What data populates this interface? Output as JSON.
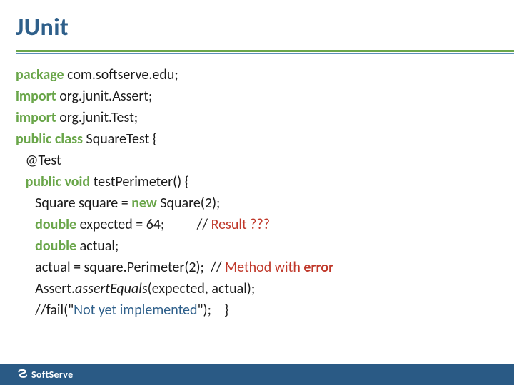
{
  "colors": {
    "title": "#2e5f8a",
    "divider_thick": "#6aa64a",
    "divider_thin": "#5b8fb9",
    "keyword": "#6aa64a",
    "text": "#1a1a1a",
    "string": "#2e5f8a",
    "error": "#c0392b",
    "footer_bg": "#2a5a85",
    "logo_fg": "#ffffff"
  },
  "title": "JUnit",
  "code": {
    "lines": [
      {
        "segments": [
          {
            "t": "package ",
            "k": true
          },
          {
            "t": "com.softserve.edu;"
          }
        ]
      },
      {
        "segments": [
          {
            "t": "import ",
            "k": true
          },
          {
            "t": "org.junit.Assert;"
          }
        ]
      },
      {
        "segments": [
          {
            "t": "import ",
            "k": true
          },
          {
            "t": "org.junit.Test;"
          }
        ]
      },
      {
        "segments": [
          {
            "t": "public class ",
            "k": true
          },
          {
            "t": "SquareTest {"
          }
        ]
      },
      {
        "indent": 1,
        "segments": [
          {
            "t": "@Test"
          }
        ]
      },
      {
        "indent": 1,
        "segments": [
          {
            "t": "public void ",
            "k": true
          },
          {
            "t": "testPerimeter() {"
          }
        ]
      },
      {
        "indent": 2,
        "segments": [
          {
            "t": "Square square = "
          },
          {
            "t": "new ",
            "k": true
          },
          {
            "t": "Square(2);"
          }
        ]
      },
      {
        "indent": 2,
        "segments": [
          {
            "t": "double ",
            "k": true
          },
          {
            "t": "expected = 64;          // "
          },
          {
            "t": "Result ???",
            "err": true
          }
        ]
      },
      {
        "indent": 2,
        "segments": [
          {
            "t": "double ",
            "k": true
          },
          {
            "t": "actual;"
          }
        ]
      },
      {
        "indent": 2,
        "segments": [
          {
            "t": "actual = square.Perimeter(2);  // "
          },
          {
            "t": "Method with ",
            "err": true
          },
          {
            "t": "error",
            "err": true,
            "k": true
          }
        ]
      },
      {
        "indent": 2,
        "segments": [
          {
            "t": "Assert."
          },
          {
            "t": "assertEquals",
            "em": true
          },
          {
            "t": "(expected, actual);"
          }
        ]
      },
      {
        "indent": 2,
        "segments": [
          {
            "t": "//fail(\""
          },
          {
            "t": "Not yet implemented",
            "str": true
          },
          {
            "t": "\");    }"
          }
        ]
      }
    ],
    "indent_unit": "   "
  },
  "footer": {
    "brand": "SoftServe"
  }
}
